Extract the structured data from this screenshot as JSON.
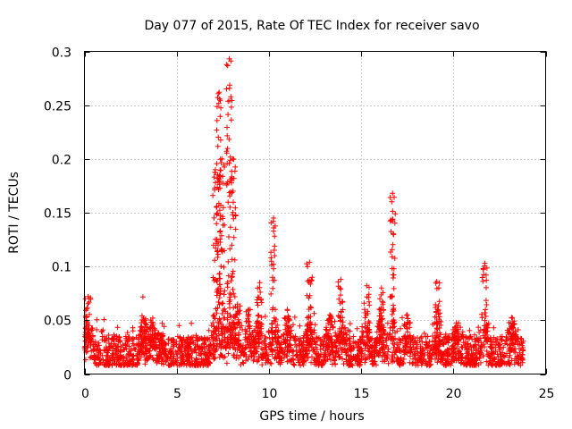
{
  "chart_data": {
    "type": "scatter",
    "title": "Day 077 of 2015, Rate Of TEC Index for receiver savo",
    "xlabel": "GPS time / hours",
    "ylabel": "ROTI / TECUs",
    "xlim": [
      0,
      25
    ],
    "ylim": [
      0,
      0.3
    ],
    "xticks": [
      0,
      5,
      10,
      15,
      20,
      25
    ],
    "xtick_labels": [
      "0",
      "5",
      "10",
      "15",
      "20",
      "25"
    ],
    "yticks": [
      0,
      0.05,
      0.1,
      0.15,
      0.2,
      0.25,
      0.3
    ],
    "ytick_labels": [
      "0",
      "0.05",
      "0.1",
      "0.15",
      "0.2",
      "0.25",
      "0.3"
    ],
    "grid": true,
    "marker": "+",
    "color": "#ff0000",
    "x_range": [
      0,
      23.8
    ],
    "baseline_band": [
      0.008,
      0.035
    ],
    "n_background_points": 2600,
    "bursts": [
      {
        "t": 0.2,
        "y": 0.072
      },
      {
        "t": 3.2,
        "y": 0.052
      },
      {
        "t": 3.7,
        "y": 0.052
      },
      {
        "t": 4.2,
        "y": 0.032
      },
      {
        "t": 7.1,
        "y": 0.19
      },
      {
        "t": 7.3,
        "y": 0.262
      },
      {
        "t": 7.45,
        "y": 0.2
      },
      {
        "t": 7.85,
        "y": 0.293
      },
      {
        "t": 8.05,
        "y": 0.2
      },
      {
        "t": 8.3,
        "y": 0.065
      },
      {
        "t": 8.9,
        "y": 0.06
      },
      {
        "t": 9.5,
        "y": 0.085
      },
      {
        "t": 10.25,
        "y": 0.145
      },
      {
        "t": 11.0,
        "y": 0.06
      },
      {
        "t": 12.2,
        "y": 0.104
      },
      {
        "t": 13.3,
        "y": 0.055
      },
      {
        "t": 13.9,
        "y": 0.088
      },
      {
        "t": 15.3,
        "y": 0.082
      },
      {
        "t": 16.1,
        "y": 0.08
      },
      {
        "t": 16.7,
        "y": 0.168
      },
      {
        "t": 17.5,
        "y": 0.055
      },
      {
        "t": 19.1,
        "y": 0.086
      },
      {
        "t": 20.2,
        "y": 0.045
      },
      {
        "t": 21.7,
        "y": 0.103
      },
      {
        "t": 23.2,
        "y": 0.052
      }
    ]
  }
}
